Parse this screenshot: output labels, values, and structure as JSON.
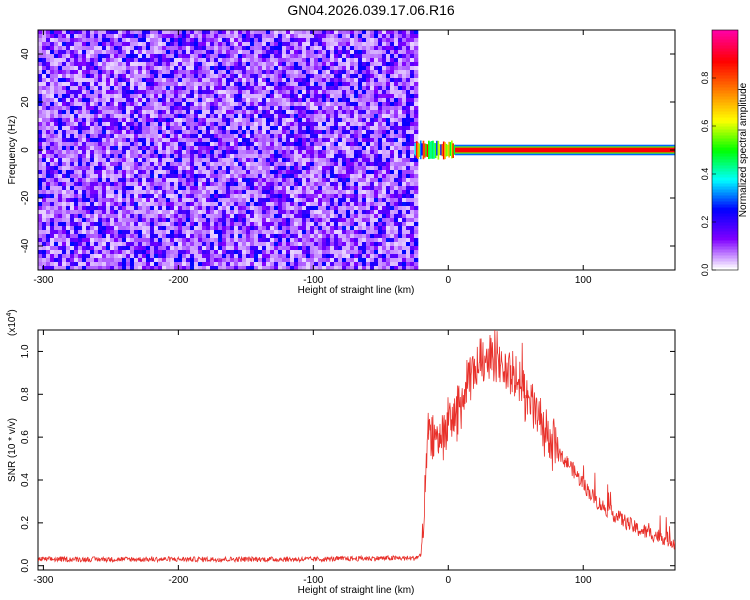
{
  "title": "GN04.2026.039.17.06.R16",
  "chart_data": [
    {
      "type": "heatmap",
      "xlabel": "Height of straight line (km)",
      "ylabel": "Frequency (Hz)",
      "xlim": [
        -304,
        168
      ],
      "ylim": [
        -50,
        50
      ],
      "xticks": [
        -300,
        -200,
        -100,
        0,
        100
      ],
      "yticks": [
        -40,
        -20,
        0,
        20,
        40
      ],
      "colorbar": {
        "label": "Normalized spectral amplitude",
        "range": [
          0,
          1
        ],
        "ticks": [
          "0.0",
          "0.2",
          "0.4",
          "0.6",
          "0.8"
        ],
        "colormap": [
          "#ffffff",
          "#8000ff",
          "#0000ff",
          "#00ffff",
          "#00ff00",
          "#ffff00",
          "#ff8000",
          "#ff0000",
          "#ff00a0"
        ]
      },
      "regions": [
        {
          "name": "noise",
          "x": [
            -304,
            -25
          ],
          "frequency": [
            -50,
            50
          ],
          "amplitude": [
            0.0,
            0.3
          ]
        },
        {
          "name": "onset",
          "x": [
            -25,
            5
          ],
          "frequency": [
            -2,
            2
          ],
          "amplitude": [
            0.2,
            0.9
          ]
        },
        {
          "name": "tone",
          "x": [
            5,
            168
          ],
          "frequency": [
            -1,
            1
          ],
          "amplitude": [
            0.9,
            1.0
          ]
        }
      ]
    },
    {
      "type": "line",
      "xlabel": "Height of straight line (km)",
      "ylabel": "SNR (10 * v/v)",
      "scale_label": "(x10",
      "scale_exp": "4",
      "xlim": [
        -304,
        168
      ],
      "ylim": [
        -0.02,
        1.1
      ],
      "xticks": [
        -300,
        -200,
        -100,
        0,
        100
      ],
      "yticks": [
        "0.0",
        "0.2",
        "0.4",
        "0.6",
        "0.8",
        "1.0"
      ],
      "color": "#e8302a",
      "envelope": {
        "x": [
          -304,
          -250,
          -200,
          -150,
          -100,
          -50,
          -25,
          -20,
          -18,
          -15,
          -10,
          -5,
          0,
          5,
          10,
          15,
          20,
          25,
          30,
          35,
          40,
          45,
          50,
          55,
          60,
          65,
          70,
          75,
          80,
          90,
          100,
          110,
          120,
          130,
          140,
          150,
          160,
          168
        ],
        "y": [
          0.03,
          0.03,
          0.03,
          0.03,
          0.03,
          0.035,
          0.035,
          0.05,
          0.2,
          0.62,
          0.6,
          0.62,
          0.66,
          0.7,
          0.76,
          0.85,
          0.92,
          0.96,
          1.0,
          0.98,
          0.93,
          0.9,
          0.87,
          0.82,
          0.76,
          0.72,
          0.65,
          0.58,
          0.53,
          0.47,
          0.38,
          0.3,
          0.25,
          0.21,
          0.17,
          0.15,
          0.13,
          0.11
        ]
      }
    }
  ]
}
